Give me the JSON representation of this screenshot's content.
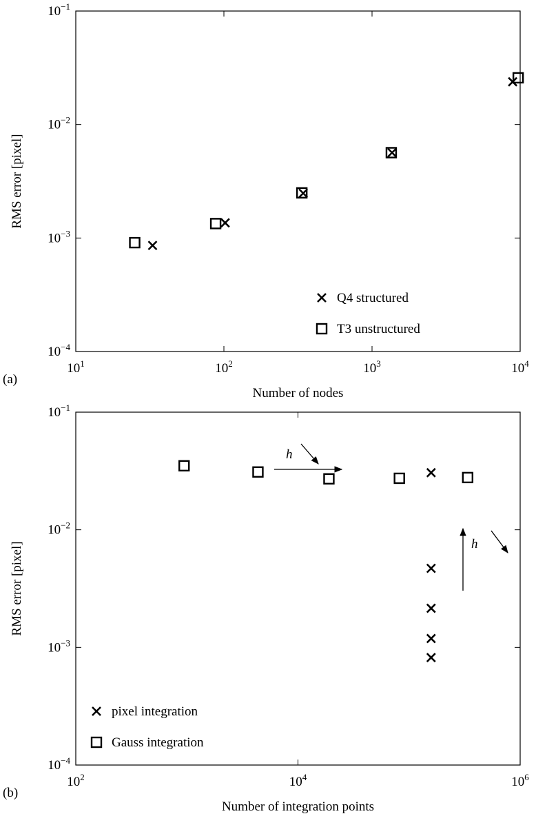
{
  "chart_data": [
    {
      "type": "scatter",
      "panel_label": "(a)",
      "x_label": "Number of nodes",
      "y_label": "RMS error [pixel]",
      "xscale": "log",
      "yscale": "log",
      "xlim": [
        10,
        10000
      ],
      "ylim": [
        0.0001,
        0.1
      ],
      "xticks": [
        {
          "value": 10,
          "label": "10",
          "exponent": "1"
        },
        {
          "value": 100,
          "label": "10",
          "exponent": "2"
        },
        {
          "value": 1000,
          "label": "10",
          "exponent": "3"
        },
        {
          "value": 10000,
          "label": "10",
          "exponent": "4"
        }
      ],
      "yticks": [
        {
          "value": 0.0001,
          "label": "10",
          "exponent": "−4"
        },
        {
          "value": 0.001,
          "label": "10",
          "exponent": "−3"
        },
        {
          "value": 0.01,
          "label": "10",
          "exponent": "−2"
        },
        {
          "value": 0.1,
          "label": "10",
          "exponent": "−1"
        }
      ],
      "legend": "lower right",
      "series": [
        {
          "name": "Q4 structured",
          "marker": "x",
          "color": "#000000",
          "x": [
            33,
            102,
            343,
            1365,
            8900
          ],
          "values": [
            0.00086,
            0.00136,
            0.00248,
            0.00565,
            0.0238
          ]
        },
        {
          "name": "T3 unstructured",
          "marker": "square",
          "color": "#000000",
          "x": [
            25,
            88,
            336,
            1349,
            9700
          ],
          "values": [
            0.00091,
            0.00134,
            0.0025,
            0.00565,
            0.0258
          ]
        }
      ]
    },
    {
      "type": "scatter",
      "panel_label": "(b)",
      "x_label": "Number of integration points",
      "y_label": "RMS error [pixel]",
      "xscale": "log",
      "yscale": "log",
      "xlim": [
        100,
        1000000
      ],
      "ylim": [
        0.0001,
        0.1
      ],
      "xticks": [
        {
          "value": 100,
          "label": "10",
          "exponent": "2"
        },
        {
          "value": 10000,
          "label": "10",
          "exponent": "4"
        },
        {
          "value": 1000000,
          "label": "10",
          "exponent": "6"
        }
      ],
      "yticks": [
        {
          "value": 0.0001,
          "label": "10",
          "exponent": "−4"
        },
        {
          "value": 0.001,
          "label": "10",
          "exponent": "−3"
        },
        {
          "value": 0.01,
          "label": "10",
          "exponent": "−2"
        },
        {
          "value": 0.1,
          "label": "10",
          "exponent": "−1"
        }
      ],
      "legend": "lower left",
      "annotations": [
        "h",
        "h"
      ],
      "series": [
        {
          "name": "pixel integration",
          "marker": "x",
          "color": "#000000",
          "x": [
            158000,
            158000,
            158000,
            158000,
            158000
          ],
          "values": [
            0.0306,
            0.0047,
            0.00215,
            0.00119,
            0.00082
          ]
        },
        {
          "name": "Gauss integration",
          "marker": "square",
          "color": "#000000",
          "x": [
            944,
            4365,
            19000,
            81800,
            337000
          ],
          "values": [
            0.035,
            0.031,
            0.0271,
            0.0274,
            0.0278
          ]
        }
      ]
    }
  ]
}
